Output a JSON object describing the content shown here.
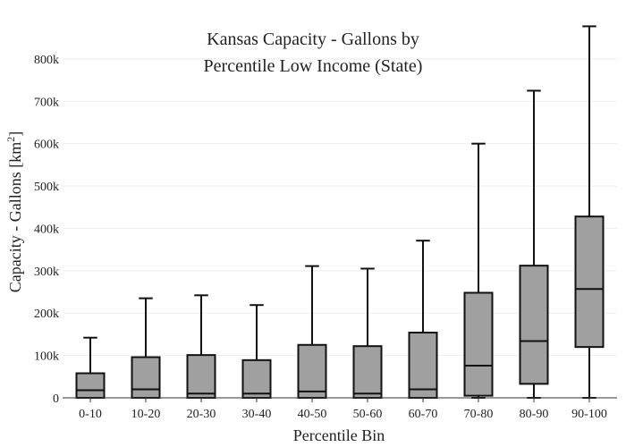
{
  "chart_data": {
    "type": "box",
    "title_line1": "Kansas Capacity - Gallons by",
    "title_line2": "Percentile Low Income (State)",
    "xlabel": "Percentile Bin",
    "ylabel": "Capacity - Gallons  [km",
    "ylabel_sup": "2",
    "ylabel_end": "]",
    "ylim": [
      0,
      880000
    ],
    "yticks": [
      0,
      100000,
      200000,
      300000,
      400000,
      500000,
      600000,
      700000,
      800000
    ],
    "ytick_labels": [
      "0",
      "100k",
      "200k",
      "300k",
      "400k",
      "500k",
      "600k",
      "700k",
      "800k"
    ],
    "categories": [
      "0-10",
      "10-20",
      "20-30",
      "30-40",
      "40-50",
      "50-60",
      "60-70",
      "70-80",
      "80-90",
      "90-100"
    ],
    "boxes": [
      {
        "min": 0,
        "q1": 0,
        "median": 18000,
        "q3": 58000,
        "max": 142000
      },
      {
        "min": 0,
        "q1": 0,
        "median": 20000,
        "q3": 96000,
        "max": 235000
      },
      {
        "min": 0,
        "q1": 0,
        "median": 10000,
        "q3": 101000,
        "max": 242000
      },
      {
        "min": 0,
        "q1": 0,
        "median": 10000,
        "q3": 89000,
        "max": 219000
      },
      {
        "min": 0,
        "q1": 0,
        "median": 15000,
        "q3": 125000,
        "max": 311000
      },
      {
        "min": 0,
        "q1": 0,
        "median": 10000,
        "q3": 122000,
        "max": 305000
      },
      {
        "min": 0,
        "q1": 0,
        "median": 20000,
        "q3": 154000,
        "max": 371000
      },
      {
        "min": 0,
        "q1": 5000,
        "median": 76000,
        "q3": 248000,
        "max": 600000
      },
      {
        "min": 0,
        "q1": 33000,
        "median": 134000,
        "q3": 312000,
        "max": 725000
      },
      {
        "min": 0,
        "q1": 120000,
        "median": 257000,
        "q3": 428000,
        "max": 877000
      }
    ],
    "box_color": "#a0a0a0",
    "line_color": "#111111",
    "grid": true
  }
}
